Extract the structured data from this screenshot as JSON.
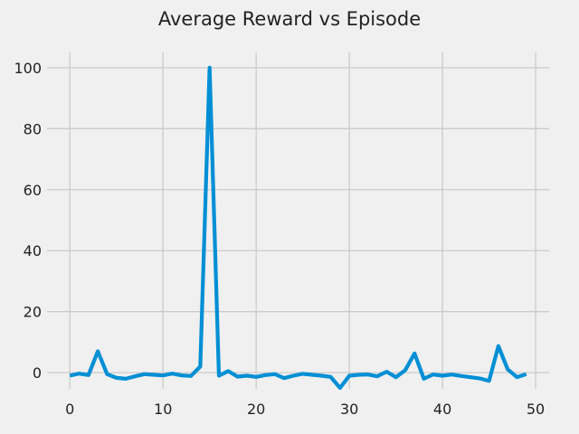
{
  "chart_data": {
    "type": "line",
    "title": "Average Reward vs Episode",
    "xlabel": "",
    "ylabel": "",
    "xlim": [
      -2.45,
      51.45
    ],
    "ylim": [
      -5.3,
      105.0
    ],
    "x_ticks": [
      0,
      10,
      20,
      30,
      40,
      50
    ],
    "y_ticks": [
      0,
      20,
      40,
      60,
      80,
      100
    ],
    "grid": true,
    "legend": "none",
    "colors": {
      "series": "#008fd5",
      "background": "#f0f0f0",
      "grid": "#cbcbcb",
      "text": "#222222"
    },
    "series": [
      {
        "x": [
          0,
          1,
          2,
          3,
          4,
          5,
          6,
          7,
          8,
          9,
          10,
          11,
          12,
          13,
          14,
          15,
          16,
          17,
          18,
          19,
          20,
          21,
          22,
          23,
          24,
          25,
          26,
          27,
          28,
          29,
          30,
          31,
          32,
          33,
          34,
          35,
          36,
          37,
          38,
          39,
          40,
          41,
          42,
          43,
          44,
          45,
          46,
          47,
          48,
          49
        ],
        "y": [
          -1.0,
          -0.3,
          -0.8,
          7.0,
          -0.5,
          -1.7,
          -2.0,
          -1.2,
          -0.5,
          -0.7,
          -0.9,
          -0.3,
          -0.9,
          -1.1,
          2.0,
          100.0,
          -1.0,
          0.5,
          -1.3,
          -1.0,
          -1.4,
          -0.8,
          -0.5,
          -1.8,
          -1.0,
          -0.4,
          -0.7,
          -1.0,
          -1.4,
          -5.0,
          -1.0,
          -0.7,
          -0.6,
          -1.2,
          0.3,
          -1.5,
          0.8,
          6.3,
          -2.0,
          -0.6,
          -1.0,
          -0.6,
          -1.1,
          -1.5,
          -1.9,
          -2.7,
          8.7,
          1.1,
          -1.5,
          -0.5
        ]
      }
    ]
  }
}
